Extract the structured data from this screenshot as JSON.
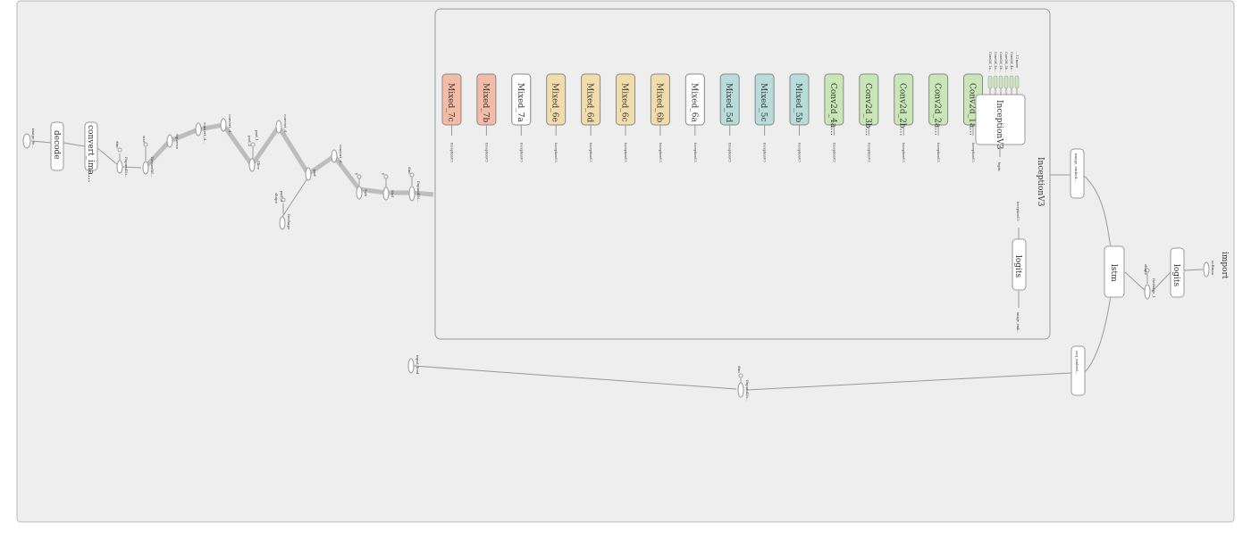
{
  "colors": {
    "mixed7": "#f4bca7",
    "mixed6": "#f3dcab",
    "mixed6a": "#ffffff",
    "mixed5": "#b8dcd9",
    "conv": "#c9e6b6",
    "plain": "#ffffff"
  },
  "groups": {
    "outer_label": "import",
    "inner_label": "InceptionV3"
  },
  "modules": [
    {
      "label": "Mixed_7c",
      "color": "mixed7"
    },
    {
      "label": "Mixed_7b",
      "color": "mixed7"
    },
    {
      "label": "Mixed_7a",
      "color": "plain"
    },
    {
      "label": "Mixed_6e",
      "color": "mixed6"
    },
    {
      "label": "Mixed_6d",
      "color": "mixed6"
    },
    {
      "label": "Mixed_6c",
      "color": "mixed6"
    },
    {
      "label": "Mixed_6b",
      "color": "mixed6"
    },
    {
      "label": "Mixed_6a",
      "color": "mixed6a"
    },
    {
      "label": "Mixed_5d",
      "color": "mixed5"
    },
    {
      "label": "Mixed_5c",
      "color": "mixed5"
    },
    {
      "label": "Mixed_5b",
      "color": "mixed5"
    },
    {
      "label": "Conv2d_4a...",
      "color": "conv"
    },
    {
      "label": "Conv2d_3b...",
      "color": "conv"
    },
    {
      "label": "Conv2d_2b...",
      "color": "conv"
    },
    {
      "label": "Conv2d_2a...",
      "color": "conv"
    },
    {
      "label": "Conv2d_1a...",
      "color": "conv"
    }
  ],
  "module_sublabel": "InceptionV3",
  "nodes": {
    "image_feed": "image_fe...",
    "decode": "decode",
    "convert_image": "convert_ima...",
    "dim": "dim",
    "expand_dims": "ExpandDi...",
    "size": "size",
    "resize_bilinear": "ResizeBil...",
    "squeeze": "Squeeze",
    "convert_d1": "convert_d...",
    "convert_d2": "convert_d...",
    "pad_1": "pad_1",
    "pad_2": "pad_2",
    "slice": "Slice",
    "convert_d3": "convert_d...",
    "pad": "pad",
    "pad_3": "pad_3",
    "shape": "shape",
    "reshape": "Reshape",
    "convert_d4": "convert_d...",
    "y1": "y",
    "sub": "Sub",
    "y2": "y",
    "mul": "Mul",
    "dim2": "dim",
    "expand_dims2": "ExpandDi...",
    "inceptionv3_block": "InceptionV3",
    "inception_logits": "logits",
    "logits_in": "InceptionV3",
    "logits_inner": "logits",
    "logits_out": "image_emb...",
    "image_embedding": "image_embed...",
    "input_feed": "input_feed",
    "dim3": "dim",
    "expand_dims3": "ExpandDi...",
    "seq_embedding": "seq_embed...",
    "lstm": "lstm",
    "shape2": "shape",
    "reshape_1": "Reshape_1",
    "logits_final": "logits",
    "softmax": "softmax"
  },
  "inception_inputs": [
    "Conv2d_1a...",
    "Conv2d_2a...",
    "Conv2d_2b...",
    "Conv2d_3b...",
    "Conv2d_4a...",
    "...12 more"
  ]
}
